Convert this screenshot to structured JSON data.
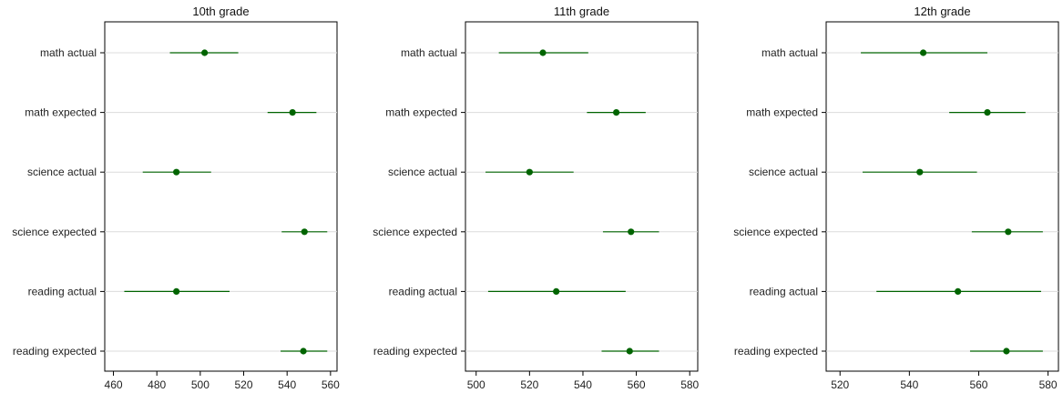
{
  "colors": {
    "marker": "#006400",
    "grid": "#dcdcdc",
    "axis": "#000000"
  },
  "chart_data": [
    {
      "type": "dot-errorbar",
      "title": "10th grade",
      "categories": [
        "math actual",
        "math expected",
        "science actual",
        "science expected",
        "reading actual",
        "reading expected"
      ],
      "series": [
        {
          "estimate": [
            502,
            542.5,
            489,
            548,
            489,
            547.5
          ],
          "lower": [
            486,
            531,
            473.5,
            537.5,
            465,
            537
          ],
          "upper": [
            517.5,
            553.5,
            505,
            558.5,
            513.5,
            558.5
          ]
        }
      ],
      "xticks": [
        460,
        480,
        500,
        520,
        540,
        560
      ],
      "xlim": [
        456,
        563
      ],
      "grid": true
    },
    {
      "type": "dot-errorbar",
      "title": "11th grade",
      "categories": [
        "math actual",
        "math expected",
        "science actual",
        "science expected",
        "reading actual",
        "reading expected"
      ],
      "series": [
        {
          "estimate": [
            525,
            552.5,
            520,
            558,
            530,
            557.5
          ],
          "lower": [
            508.5,
            541.5,
            503.5,
            547.5,
            504.5,
            547
          ],
          "upper": [
            542,
            563.5,
            536.5,
            568.5,
            556,
            568.5
          ]
        }
      ],
      "xticks": [
        500,
        520,
        540,
        560,
        580
      ],
      "xlim": [
        496,
        583
      ],
      "grid": true
    },
    {
      "type": "dot-errorbar",
      "title": "12th grade",
      "categories": [
        "math actual",
        "math expected",
        "science actual",
        "science expected",
        "reading actual",
        "reading expected"
      ],
      "series": [
        {
          "estimate": [
            544,
            562.5,
            543,
            568.5,
            554,
            568
          ],
          "lower": [
            526,
            551.5,
            526.5,
            558,
            530.5,
            557.5
          ],
          "upper": [
            562.5,
            573.5,
            559.5,
            578.5,
            578,
            578.5
          ]
        }
      ],
      "xticks": [
        520,
        540,
        560,
        580
      ],
      "xlim": [
        516,
        583
      ],
      "grid": true
    }
  ]
}
